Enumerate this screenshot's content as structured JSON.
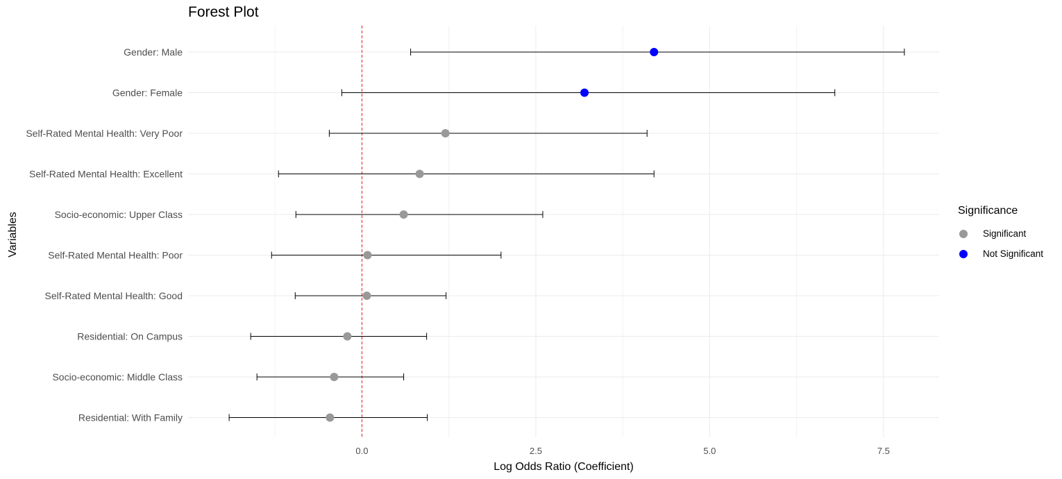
{
  "chart_data": {
    "type": "scatter",
    "title": "Forest Plot",
    "xlabel": "Log Odds Ratio (Coefficient)",
    "ylabel": "Variables",
    "xlim": [
      -2.5,
      8.3
    ],
    "x_ticks": [
      0,
      2.5,
      5,
      7.5
    ],
    "x_tick_labels": [
      "0.0",
      "2.5",
      "5.0",
      "7.5"
    ],
    "reference_line": {
      "x": 0,
      "color": "#e41a1c",
      "style": "dashed"
    },
    "grid": true,
    "legend": {
      "title": "Significance",
      "placement": "right",
      "entries": [
        {
          "label": "Significant",
          "color": "#999999"
        },
        {
          "label": "Not Significant",
          "color": "#0000ff"
        }
      ]
    },
    "categories": [
      "Gender: Male",
      "Gender: Female",
      "Self-Rated Mental Health: Very Poor",
      "Self-Rated Mental Health: Excellent",
      "Socio-economic: Upper Class",
      "Self-Rated Mental Health: Poor",
      "Self-Rated Mental Health: Good",
      "Residential: On Campus",
      "Socio-economic: Middle Class",
      "Residential: With Family"
    ],
    "estimates": [
      4.2,
      3.2,
      1.2,
      0.83,
      0.6,
      0.08,
      0.07,
      -0.21,
      -0.4,
      -0.46
    ],
    "ci_lower": [
      0.7,
      -0.29,
      -0.47,
      -1.2,
      -0.95,
      -1.3,
      -0.96,
      -1.6,
      -1.51,
      -1.91
    ],
    "ci_upper": [
      7.8,
      6.8,
      4.1,
      4.2,
      2.6,
      2.0,
      1.21,
      0.93,
      0.6,
      0.94
    ],
    "significance": [
      "Not Significant",
      "Not Significant",
      "Significant",
      "Significant",
      "Significant",
      "Significant",
      "Significant",
      "Significant",
      "Significant",
      "Significant"
    ]
  }
}
